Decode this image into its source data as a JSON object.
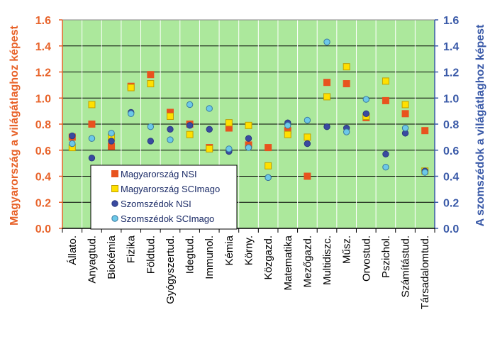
{
  "chart_data": {
    "type": "scatter",
    "categories": [
      "Állato.",
      "Anyagtud.",
      "Biokémia",
      "Fizika",
      "Földtud.",
      "Gyógyszertud.",
      "Idegtud.",
      "Immunol.",
      "Kémia",
      "Körny.",
      "Közgazd.",
      "Matematika",
      "Mezőgazd.",
      "Multidiszc.",
      "Műsz.",
      "Orvostud.",
      "Pszichol.",
      "Számítástud.",
      "Társadalomtud."
    ],
    "ylabel_left": "Magyarország a világátlaghoz képest",
    "ylabel_right": "A szomszédok a világátlaghoz képest",
    "ylim": [
      0,
      1.6
    ],
    "yticks": [
      "0.0",
      "0.2",
      "0.4",
      "0.6",
      "0.8",
      "1.0",
      "1.2",
      "1.4",
      "1.6"
    ],
    "legend_position": "lower-left",
    "series": [
      {
        "name": "Magyarország NSI",
        "marker": "square",
        "color": "#e8531e",
        "edge": "#e8531e",
        "values": [
          0.7,
          0.8,
          0.63,
          1.09,
          1.18,
          0.89,
          0.8,
          0.62,
          0.77,
          0.64,
          0.62,
          0.75,
          0.4,
          1.12,
          1.11,
          0.85,
          0.98,
          0.88,
          0.75
        ]
      },
      {
        "name": "Magyarország SCImago",
        "marker": "square",
        "color": "#ffe000",
        "edge": "#c0a000",
        "values": [
          0.62,
          0.95,
          0.7,
          1.08,
          1.11,
          0.86,
          0.72,
          0.61,
          0.81,
          0.79,
          0.48,
          0.72,
          0.7,
          1.01,
          1.24,
          0.86,
          1.13,
          0.95,
          0.44
        ]
      },
      {
        "name": "Szomszédok NSI",
        "marker": "circle",
        "color": "#3a4aa0",
        "edge": "#2a3a80",
        "values": [
          0.71,
          0.54,
          0.67,
          0.89,
          0.67,
          0.76,
          0.79,
          0.76,
          0.59,
          0.69,
          0.39,
          0.81,
          0.65,
          0.78,
          0.77,
          0.88,
          0.57,
          0.73,
          0.44
        ]
      },
      {
        "name": "Szomszédok SCImago",
        "marker": "circle",
        "color": "#6cc8e8",
        "edge": "#3a7aa0",
        "values": [
          0.65,
          0.69,
          0.73,
          0.88,
          0.78,
          0.68,
          0.95,
          0.92,
          0.61,
          0.62,
          0.39,
          0.79,
          0.83,
          1.43,
          0.74,
          0.99,
          0.47,
          0.77,
          0.43
        ]
      }
    ]
  }
}
